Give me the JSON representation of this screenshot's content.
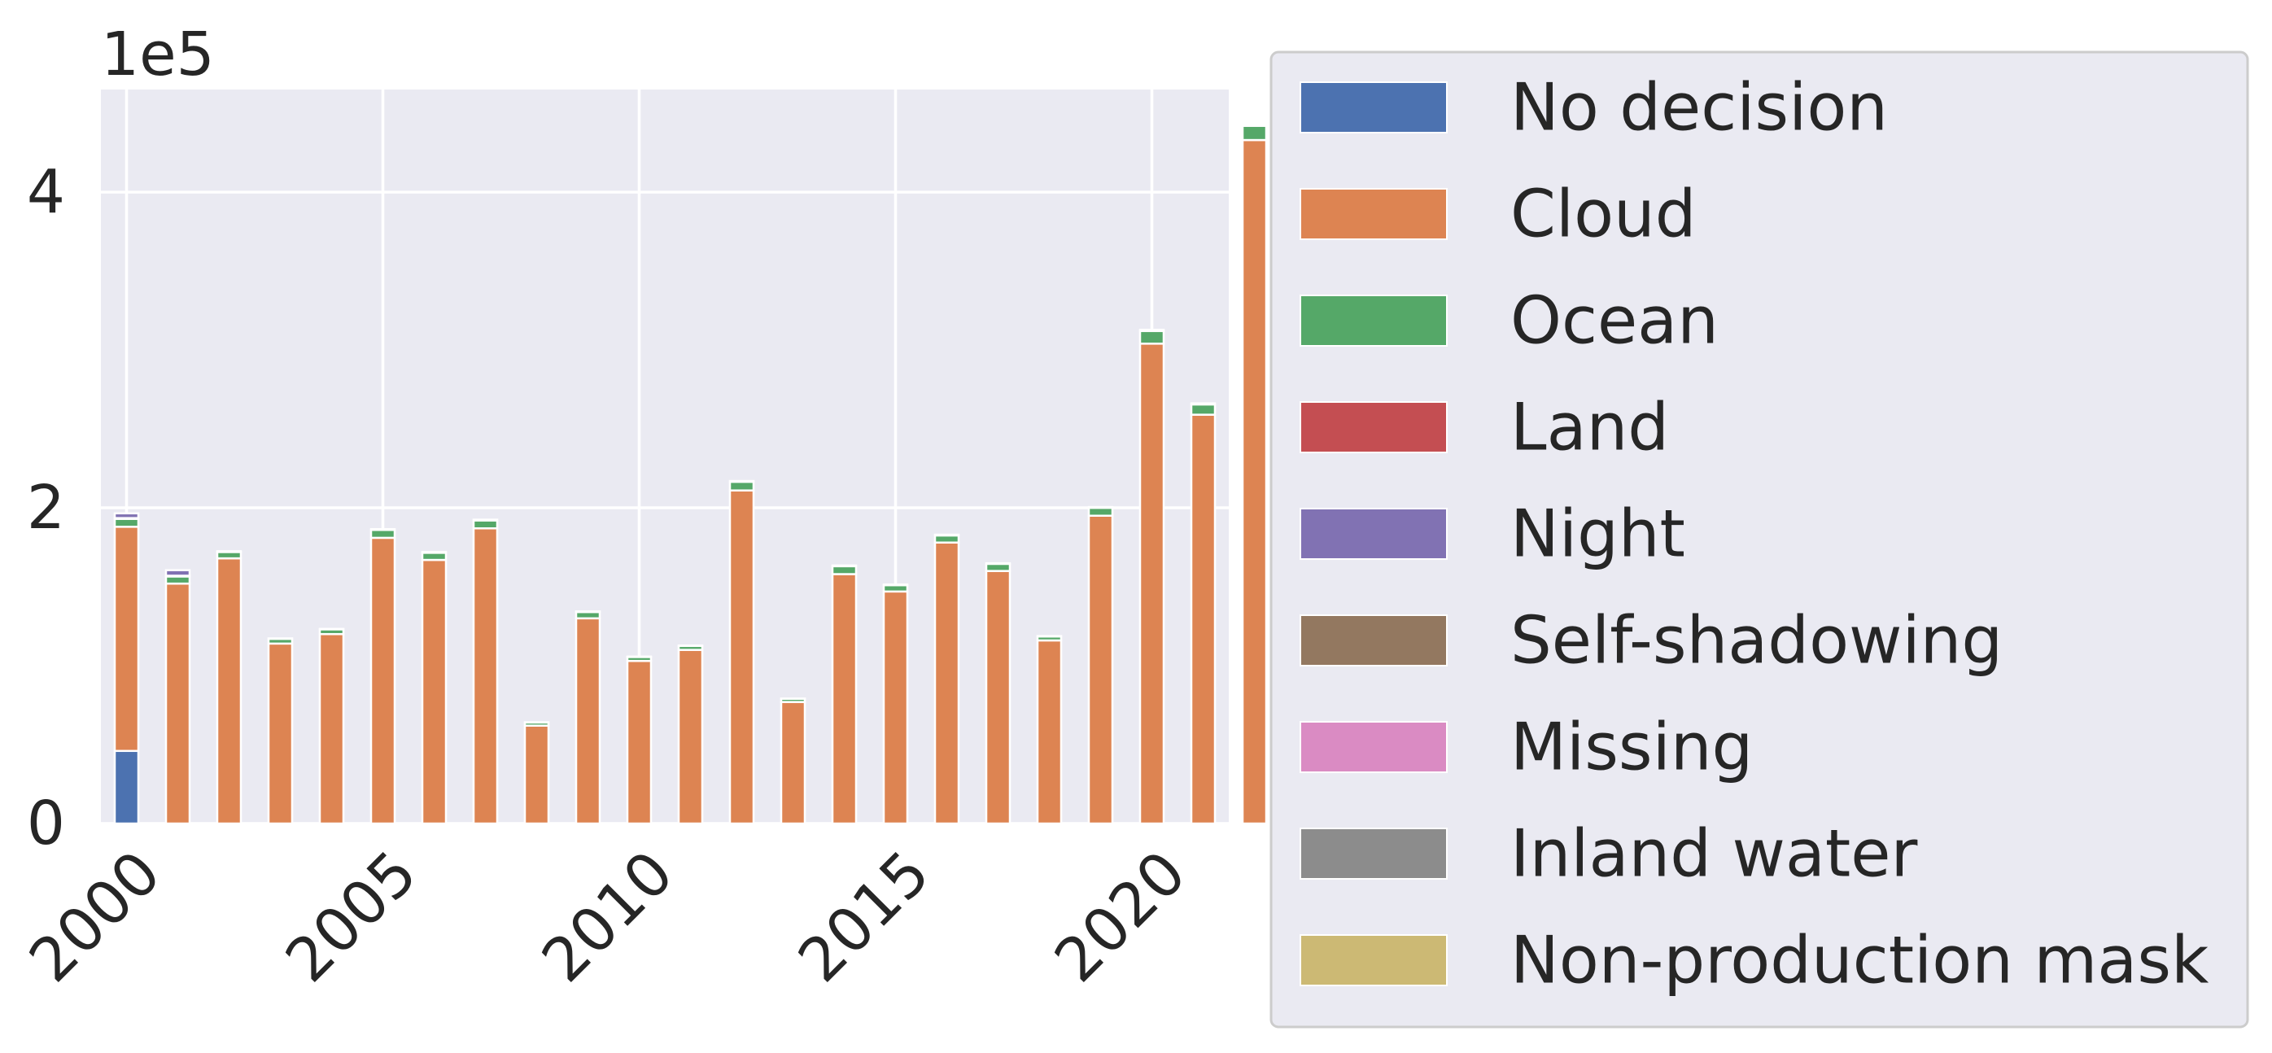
{
  "chart_data": {
    "type": "bar",
    "stacked": true,
    "grid": true,
    "legend_position": "outside-right",
    "title": "",
    "xlabel": "",
    "ylabel": "",
    "y_offset_text": "1e5",
    "ylim": [
      0,
      465000
    ],
    "xlim": [
      1999.5,
      2021.5
    ],
    "x_ticks": [
      2000,
      2005,
      2010,
      2015,
      2020
    ],
    "x_tick_labels": [
      "2000",
      "2005",
      "2010",
      "2015",
      "2020"
    ],
    "y_ticks": [
      0,
      200000,
      400000
    ],
    "y_tick_labels": [
      "0",
      "2",
      "4"
    ],
    "x": [
      2000,
      2001,
      2002,
      2003,
      2004,
      2005,
      2006,
      2007,
      2008,
      2009,
      2010,
      2011,
      2012,
      2013,
      2014,
      2015,
      2016,
      2017,
      2018,
      2019,
      2020,
      2021,
      2022
    ],
    "series": [
      {
        "name": "No decision",
        "color": "#4c72b0",
        "values": [
          46000,
          0,
          0,
          0,
          0,
          0,
          0,
          0,
          0,
          0,
          0,
          0,
          0,
          0,
          0,
          0,
          0,
          0,
          0,
          0,
          0,
          0,
          0
        ]
      },
      {
        "name": "Cloud",
        "color": "#dd8452",
        "values": [
          142000,
          152000,
          168000,
          114000,
          120000,
          181000,
          167000,
          187000,
          62000,
          130000,
          103000,
          110000,
          211000,
          77000,
          158000,
          147000,
          178000,
          160000,
          116000,
          195000,
          304000,
          259000,
          433000
        ]
      },
      {
        "name": "Ocean",
        "color": "#55a868",
        "values": [
          5000,
          4500,
          4000,
          3000,
          3000,
          5000,
          4500,
          5000,
          2000,
          4000,
          2500,
          2500,
          5500,
          2000,
          5000,
          4000,
          4500,
          4500,
          2500,
          5000,
          8000,
          6500,
          9000
        ]
      },
      {
        "name": "Land",
        "color": "#c44e52",
        "values": [
          500,
          500,
          500,
          300,
          300,
          500,
          500,
          500,
          200,
          400,
          300,
          300,
          500,
          200,
          500,
          400,
          500,
          400,
          300,
          500,
          800,
          700,
          900
        ]
      },
      {
        "name": "Night",
        "color": "#8172b3",
        "values": [
          3000,
          3500,
          0,
          0,
          0,
          0,
          0,
          0,
          0,
          0,
          0,
          0,
          0,
          0,
          0,
          0,
          0,
          0,
          0,
          0,
          0,
          0,
          0
        ]
      },
      {
        "name": "Self-shadowing",
        "color": "#937860",
        "values": [
          0,
          0,
          0,
          0,
          0,
          0,
          0,
          0,
          0,
          0,
          0,
          0,
          0,
          0,
          0,
          0,
          0,
          0,
          0,
          0,
          0,
          0,
          0
        ]
      },
      {
        "name": "Missing",
        "color": "#da8bc3",
        "values": [
          0,
          0,
          0,
          0,
          0,
          0,
          0,
          0,
          0,
          0,
          0,
          0,
          0,
          0,
          0,
          0,
          0,
          0,
          0,
          0,
          0,
          0,
          0
        ]
      },
      {
        "name": "Inland water",
        "color": "#8c8c8c",
        "values": [
          0,
          0,
          0,
          0,
          0,
          0,
          0,
          0,
          0,
          0,
          0,
          0,
          0,
          0,
          0,
          0,
          0,
          0,
          0,
          0,
          0,
          0,
          0
        ]
      },
      {
        "name": "Non-production mask",
        "color": "#ccb974",
        "values": [
          0,
          0,
          0,
          0,
          0,
          0,
          0,
          0,
          0,
          0,
          0,
          0,
          0,
          0,
          0,
          0,
          0,
          0,
          0,
          0,
          0,
          0,
          0
        ]
      }
    ]
  }
}
